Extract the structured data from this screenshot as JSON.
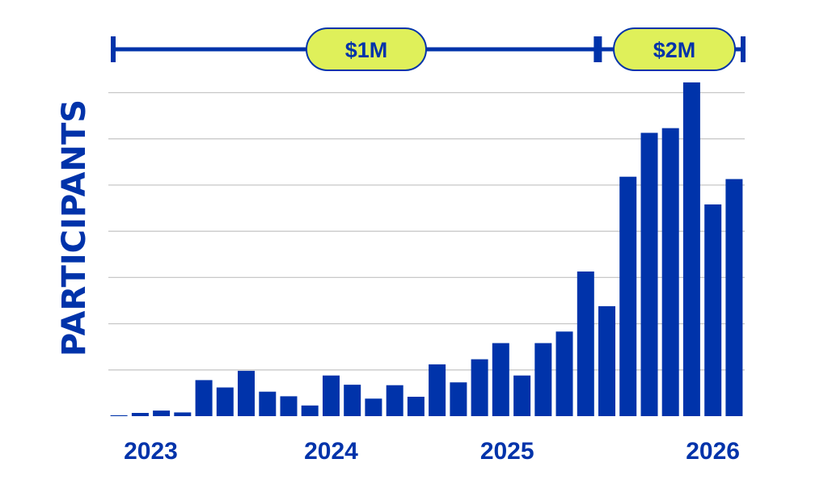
{
  "chart_data": {
    "type": "bar",
    "ylabel": "PARTICIPANTS",
    "ylim": [
      0,
      7
    ],
    "grid": true,
    "values": [
      0.02,
      0.07,
      0.12,
      0.08,
      0.78,
      0.62,
      0.98,
      0.53,
      0.43,
      0.23,
      0.88,
      0.68,
      0.38,
      0.67,
      0.42,
      1.12,
      0.73,
      1.23,
      1.58,
      0.88,
      1.58,
      1.83,
      3.13,
      2.38,
      5.18,
      6.13,
      6.23,
      7.22,
      4.58,
      5.13
    ],
    "x_tick_labels": [
      {
        "label": "2023",
        "bar_index": 1.5
      },
      {
        "label": "2024",
        "bar_index": 10
      },
      {
        "label": "2025",
        "bar_index": 18.3
      },
      {
        "label": "2026",
        "bar_index": 28
      }
    ],
    "funding_periods": [
      {
        "label": "$1M",
        "start_bar": 0,
        "end_bar": 22
      },
      {
        "label": "$2M",
        "start_bar": 23,
        "end_bar": 29
      }
    ],
    "colors": {
      "bar": "#0033aa",
      "grid": "#c8c8c8",
      "pill_fill": "#dff05a",
      "text": "#0033aa"
    }
  }
}
